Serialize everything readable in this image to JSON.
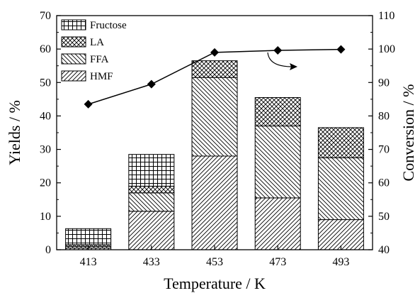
{
  "chart_data": {
    "type": "bar",
    "categories": [
      "413",
      "433",
      "453",
      "473",
      "493"
    ],
    "series": [
      {
        "name": "HMF",
        "values": [
          0.5,
          11.5,
          28.0,
          15.5,
          9.0
        ]
      },
      {
        "name": "FFA",
        "values": [
          0.5,
          5.5,
          23.5,
          21.5,
          18.5
        ]
      },
      {
        "name": "LA",
        "values": [
          0.5,
          2.0,
          5.0,
          8.5,
          9.0
        ]
      },
      {
        "name": "Fructose",
        "values": [
          4.8,
          9.5,
          0.0,
          0.0,
          0.0
        ]
      }
    ],
    "line_series": {
      "name": "Conversion",
      "values": [
        83.5,
        89.5,
        99.0,
        99.6,
        99.9
      ]
    },
    "xlabel": "Temperature / K",
    "ylabel": "Yields / %",
    "y2label": "Conversion / %",
    "ylim": [
      0,
      70
    ],
    "y2lim": [
      40,
      110
    ],
    "yticks": [
      "0",
      "10",
      "20",
      "30",
      "40",
      "50",
      "60",
      "70"
    ],
    "y2ticks": [
      "40",
      "50",
      "60",
      "70",
      "80",
      "90",
      "100",
      "110"
    ],
    "legend": [
      "Fructose",
      "LA",
      "FFA",
      "HMF"
    ],
    "legend_position": "top-left",
    "grid": false,
    "annotation": "curved arrow pointing to right axis"
  }
}
